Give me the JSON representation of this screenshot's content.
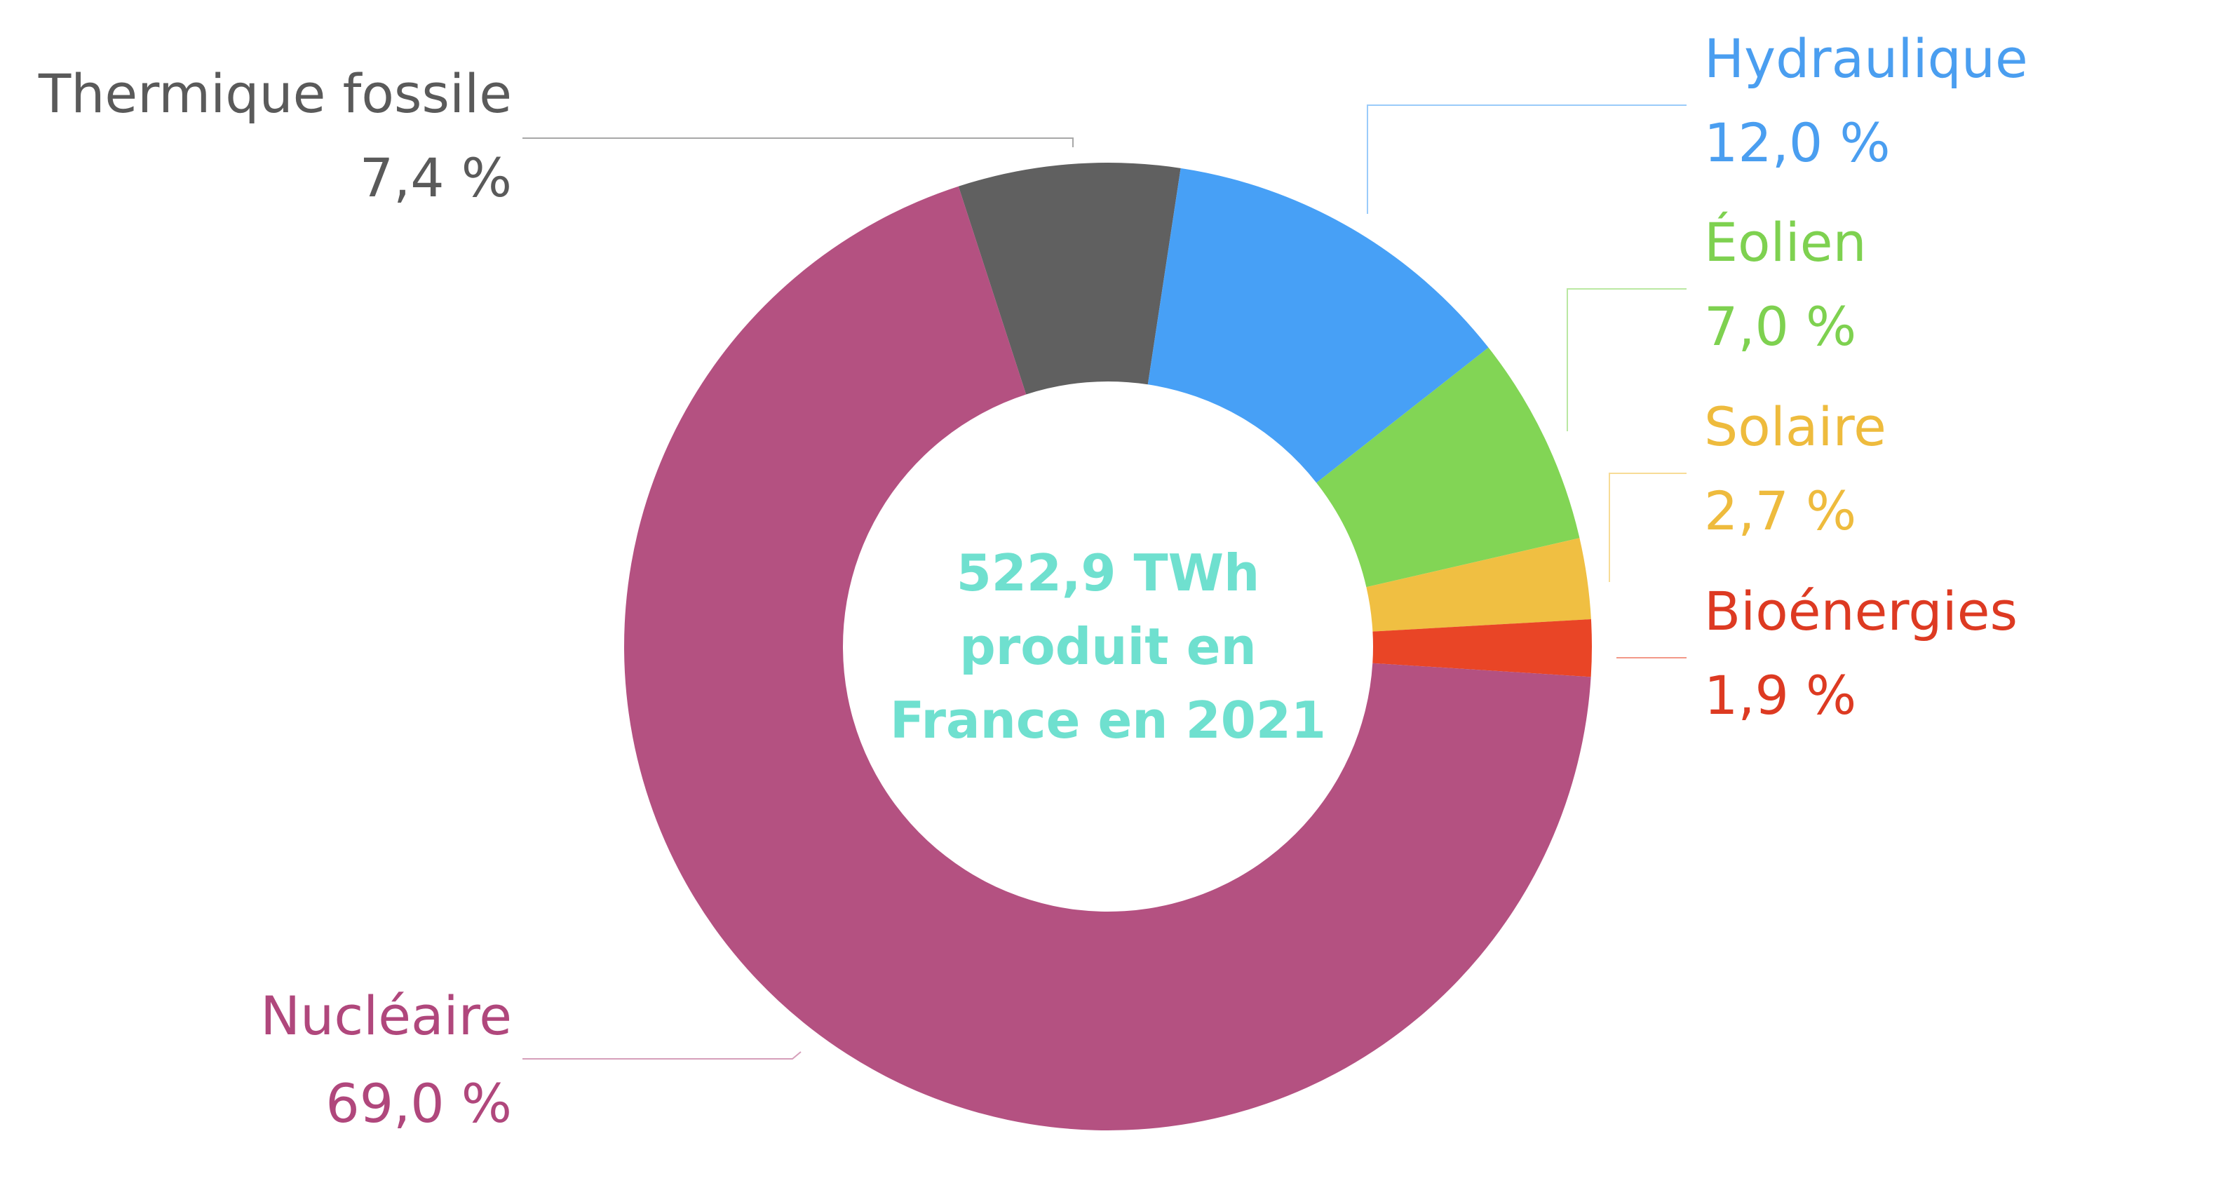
{
  "chart_data": {
    "type": "pie",
    "variant": "donut",
    "center_text": [
      "522,9 TWh",
      "produit en",
      "France en 2021"
    ],
    "center_color": "#6fe0cf",
    "slices": [
      {
        "label": "Thermique fossile",
        "value": 7.4,
        "value_label": "7,4 %",
        "color": "#606060",
        "label_color": "#5a5a5a"
      },
      {
        "label": "Hydraulique",
        "value": 12.0,
        "value_label": "12,0 %",
        "color": "#47a0f6",
        "label_color": "#4a9ef0"
      },
      {
        "label": "Éolien",
        "value": 7.0,
        "value_label": "7,0 %",
        "color": "#82d555",
        "label_color": "#7ed150"
      },
      {
        "label": "Solaire",
        "value": 2.7,
        "value_label": "2,7 %",
        "color": "#f0bf42",
        "label_color": "#eebb3d"
      },
      {
        "label": "Bioénergies",
        "value": 1.9,
        "value_label": "1,9 %",
        "color": "#e94526",
        "label_color": "#dd3a22"
      },
      {
        "label": "Nucléaire",
        "value": 69.0,
        "value_label": "69,0 %",
        "color": "#b45181",
        "label_color": "#b0477c"
      }
    ]
  }
}
